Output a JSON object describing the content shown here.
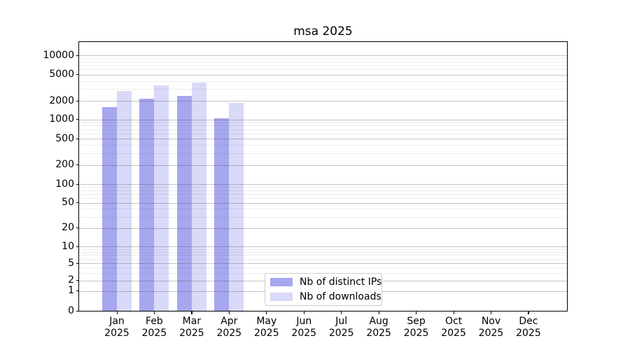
{
  "chart_data": {
    "type": "bar",
    "title": "msa 2025",
    "categories": [
      "Jan",
      "Feb",
      "Mar",
      "Apr",
      "May",
      "Jun",
      "Jul",
      "Aug",
      "Sep",
      "Oct",
      "Nov",
      "Dec"
    ],
    "x_year_line": "2025",
    "series": [
      {
        "name": "Nb of distinct IPs",
        "color": "#a7a7f0",
        "values": [
          1600,
          2150,
          2400,
          1040,
          null,
          null,
          null,
          null,
          null,
          null,
          null,
          null
        ]
      },
      {
        "name": "Nb of downloads",
        "color": "#d9d9f8",
        "values": [
          2800,
          3400,
          3800,
          1870,
          null,
          null,
          null,
          null,
          null,
          null,
          null,
          null
        ]
      }
    ],
    "y_axis": {
      "scale": "symlog",
      "ticks": [
        0,
        1,
        2,
        5,
        10,
        20,
        50,
        100,
        200,
        500,
        1000,
        2000,
        5000,
        10000
      ],
      "top_value": 16000
    },
    "grid": {
      "major": true,
      "minor": true,
      "minor_mantissas": [
        3,
        4,
        6,
        7,
        8,
        9
      ]
    },
    "legend": {
      "position": "inside-lower-center"
    }
  },
  "colors": {
    "background": "#ffffff",
    "axis": "#000000",
    "major_grid": "#b8b8b8",
    "minor_grid": "#e9e9e9",
    "legend_border": "#cccccc"
  }
}
